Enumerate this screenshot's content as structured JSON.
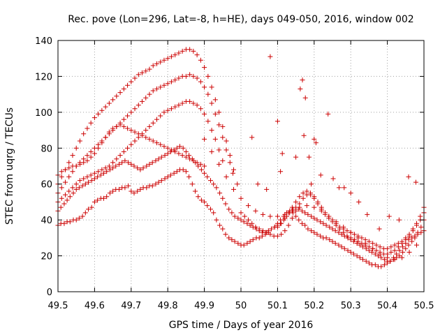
{
  "chart_data": {
    "type": "scatter",
    "title": "Rec. pove (Lon=296, Lat=-8, h=HE), days 049-050, 2016, window 002",
    "xlabel": "GPS time / Days of year 2016",
    "ylabel": "STEC from uqrg / TECUs",
    "xlim": [
      49.5,
      50.5
    ],
    "ylim": [
      0,
      140
    ],
    "xticks": [
      49.5,
      49.6,
      49.7,
      49.8,
      49.9,
      50,
      50.1,
      50.2,
      50.3,
      50.4,
      50.5
    ],
    "xtick_labels": [
      "49.5",
      "49.6",
      "49.7",
      "49.8",
      "49.9",
      "50",
      "50.1",
      "50.2",
      "50.3",
      "50.4",
      "50.5"
    ],
    "yticks": [
      0,
      20,
      40,
      60,
      80,
      100,
      120,
      140
    ],
    "ytick_labels": [
      "0",
      "20",
      "40",
      "60",
      "80",
      "100",
      "120",
      "140"
    ],
    "grid": true,
    "marker": "plus",
    "color": "#cc0000",
    "series": [
      {
        "x": [
          49.5,
          49.508,
          49.517,
          49.525,
          49.533,
          49.542,
          49.55,
          49.558,
          49.567,
          49.575,
          49.583,
          49.592,
          49.6,
          49.608,
          49.617,
          49.625,
          49.633,
          49.642,
          49.65,
          49.658,
          49.667,
          49.675,
          49.683,
          49.692,
          49.7,
          49.708,
          49.717,
          49.725,
          49.733,
          49.742,
          49.75,
          49.758,
          49.767,
          49.775,
          49.783,
          49.792,
          49.8,
          49.808,
          49.817,
          49.825,
          49.833,
          49.842,
          49.85,
          49.858,
          49.867,
          49.875,
          49.883,
          49.892,
          49.9,
          49.908,
          49.917,
          49.925,
          49.933,
          49.942,
          49.95,
          49.958,
          49.967,
          49.975,
          49.983,
          49.992,
          50.0,
          50.008,
          50.017,
          50.025,
          50.033,
          50.042,
          50.05,
          50.058,
          50.067,
          50.075,
          50.083,
          50.092,
          50.1,
          50.108,
          50.117,
          50.125,
          50.133,
          50.142,
          50.15,
          50.158,
          50.167,
          50.175,
          50.183,
          50.192,
          50.2,
          50.208,
          50.217,
          50.225,
          50.233,
          50.242,
          50.25,
          50.258,
          50.267,
          50.275,
          50.283,
          50.292,
          50.3,
          50.308,
          50.317,
          50.325,
          50.333,
          50.342,
          50.35,
          50.358,
          50.367,
          50.375,
          50.383,
          50.392,
          50.4,
          50.408,
          50.417,
          50.425,
          50.433,
          50.442,
          50.45,
          50.458,
          50.467,
          50.475,
          50.483,
          50.492,
          50.5
        ],
        "y": [
          37,
          38,
          38,
          39,
          39,
          40,
          40,
          41,
          42,
          44,
          46,
          47,
          50,
          51,
          52,
          52,
          53,
          55,
          56,
          57,
          57,
          58,
          58,
          59,
          56,
          55,
          56,
          57,
          58,
          58,
          59,
          59,
          60,
          61,
          62,
          63,
          64,
          65,
          66,
          67,
          68,
          68,
          67,
          64,
          60,
          56,
          53,
          51,
          50,
          48,
          46,
          44,
          40,
          37,
          35,
          32,
          30,
          29,
          28,
          27,
          26,
          26,
          27,
          28,
          29,
          30,
          30,
          31,
          32,
          33,
          35,
          36,
          38,
          40,
          42,
          44,
          45,
          44,
          42,
          40,
          38,
          37,
          35,
          34,
          33,
          32,
          31,
          30,
          30,
          29,
          28,
          27,
          26,
          25,
          24,
          23,
          22,
          21,
          20,
          19,
          18,
          17,
          16,
          15,
          15,
          14,
          14,
          15,
          16,
          17,
          19,
          21,
          23,
          25,
          27,
          29,
          30,
          31,
          32,
          33,
          34
        ]
      },
      {
        "x": [
          49.5,
          49.508,
          49.517,
          49.525,
          49.533,
          49.542,
          49.55,
          49.558,
          49.567,
          49.575,
          49.583,
          49.592,
          49.6,
          49.608,
          49.617,
          49.625,
          49.633,
          49.642,
          49.65,
          49.658,
          49.667,
          49.675,
          49.683,
          49.692,
          49.7,
          49.708,
          49.717,
          49.725,
          49.733,
          49.742,
          49.75,
          49.758,
          49.767,
          49.775,
          49.783,
          49.792,
          49.8,
          49.808,
          49.817,
          49.825,
          49.833,
          49.842,
          49.85,
          49.858,
          49.867,
          49.875,
          49.883,
          49.892,
          49.9,
          49.908,
          49.917,
          49.925,
          49.933,
          49.942,
          49.95,
          49.958,
          49.967,
          49.975,
          49.983,
          49.992,
          50.0,
          50.008,
          50.017,
          50.025,
          50.033,
          50.042,
          50.05,
          50.058,
          50.067,
          50.075,
          50.083,
          50.092,
          50.1,
          50.108,
          50.117,
          50.125,
          50.133,
          50.142,
          50.15,
          50.158,
          50.167,
          50.175,
          50.183,
          50.192,
          50.2,
          50.208,
          50.217,
          50.225,
          50.233,
          50.242,
          50.25,
          50.258,
          50.267,
          50.275,
          50.283,
          50.292,
          50.3,
          50.308,
          50.317,
          50.325,
          50.333,
          50.342,
          50.35,
          50.358,
          50.367,
          50.375,
          50.383,
          50.392,
          50.4,
          50.408,
          50.417,
          50.425,
          50.433,
          50.442,
          50.45,
          50.458,
          50.467,
          50.475,
          50.483,
          50.492,
          50.5
        ],
        "y": [
          45,
          47,
          49,
          51,
          53,
          55,
          57,
          58,
          59,
          60,
          61,
          62,
          63,
          64,
          65,
          66,
          67,
          68,
          69,
          70,
          71,
          72,
          73,
          72,
          71,
          70,
          69,
          68,
          69,
          70,
          71,
          72,
          73,
          74,
          75,
          76,
          77,
          78,
          79,
          80,
          81,
          80,
          78,
          76,
          74,
          72,
          70,
          68,
          66,
          64,
          62,
          60,
          58,
          55,
          52,
          49,
          46,
          44,
          42,
          41,
          40,
          39,
          38,
          37,
          36,
          35,
          34,
          33,
          33,
          34,
          35,
          36,
          37,
          38,
          40,
          42,
          44,
          46,
          47,
          46,
          45,
          44,
          43,
          42,
          41,
          40,
          39,
          38,
          37,
          36,
          35,
          34,
          33,
          32,
          31,
          30,
          29,
          28,
          27,
          26,
          25,
          24,
          23,
          22,
          21,
          20,
          19,
          18,
          17,
          17,
          18,
          19,
          20,
          22,
          24,
          26,
          28,
          30,
          33,
          36,
          40
        ]
      },
      {
        "x": [
          49.5,
          49.51,
          49.52,
          49.53,
          49.54,
          49.55,
          49.56,
          49.57,
          49.58,
          49.59,
          49.6,
          49.61,
          49.62,
          49.63,
          49.64,
          49.65,
          49.66,
          49.67,
          49.68,
          49.69,
          49.7,
          49.71,
          49.72,
          49.73,
          49.74,
          49.75,
          49.76,
          49.77,
          49.78,
          49.79,
          49.8,
          49.81,
          49.82,
          49.83,
          49.84,
          49.85,
          49.86,
          49.87,
          49.88,
          49.89,
          49.9,
          49.91,
          49.92,
          49.93,
          49.94,
          49.95,
          49.96,
          49.97,
          49.98
        ],
        "y": [
          60,
          64,
          68,
          72,
          76,
          80,
          84,
          88,
          91,
          94,
          97,
          99,
          101,
          103,
          105,
          107,
          109,
          111,
          113,
          115,
          117,
          119,
          121,
          122,
          123,
          124,
          126,
          127,
          128,
          129,
          130,
          131,
          132,
          133,
          134,
          135,
          135,
          134,
          132,
          129,
          125,
          120,
          114,
          107,
          100,
          92,
          84,
          76,
          68
        ]
      },
      {
        "x": [
          49.5,
          49.51,
          49.52,
          49.53,
          49.54,
          49.55,
          49.56,
          49.57,
          49.58,
          49.59,
          49.6,
          49.61,
          49.62,
          49.63,
          49.64,
          49.65,
          49.66,
          49.67,
          49.68,
          49.69,
          49.7,
          49.71,
          49.72,
          49.73,
          49.74,
          49.75,
          49.76,
          49.77,
          49.78,
          49.79,
          49.8,
          49.81,
          49.82,
          49.83,
          49.84,
          49.85,
          49.86,
          49.87,
          49.88,
          49.89,
          49.9,
          49.91,
          49.92,
          49.93,
          49.94,
          49.95,
          49.96,
          49.97
        ],
        "y": [
          55,
          58,
          61,
          64,
          67,
          70,
          72,
          74,
          76,
          78,
          80,
          82,
          84,
          86,
          88,
          90,
          92,
          94,
          96,
          98,
          100,
          102,
          104,
          106,
          108,
          110,
          112,
          113,
          114,
          115,
          116,
          117,
          118,
          119,
          120,
          120,
          121,
          120,
          119,
          117,
          114,
          110,
          105,
          99,
          93,
          86,
          79,
          72
        ]
      },
      {
        "x": [
          49.5,
          49.51,
          49.52,
          49.53,
          49.54,
          49.55,
          49.56,
          49.57,
          49.58,
          49.59,
          49.6,
          49.61,
          49.62,
          49.63,
          49.64,
          49.65,
          49.66,
          49.67,
          49.68,
          49.69,
          49.7,
          49.71,
          49.72,
          49.73,
          49.74,
          49.75,
          49.76,
          49.77,
          49.78,
          49.79,
          49.8,
          49.81,
          49.82,
          49.83,
          49.84,
          49.85,
          49.86,
          49.87,
          49.88,
          49.89,
          49.9,
          49.91,
          49.92,
          49.93,
          49.94,
          49.95
        ],
        "y": [
          50,
          52,
          54,
          56,
          58,
          60,
          62,
          63,
          64,
          65,
          66,
          67,
          68,
          69,
          70,
          72,
          74,
          76,
          78,
          80,
          82,
          84,
          86,
          88,
          90,
          92,
          94,
          96,
          98,
          100,
          101,
          102,
          103,
          104,
          105,
          106,
          106,
          105,
          104,
          102,
          99,
          95,
          90,
          85,
          79,
          73
        ]
      },
      {
        "x": [
          49.5,
          49.51,
          49.52,
          49.53,
          49.54,
          49.55,
          49.56,
          49.57,
          49.58,
          49.59,
          49.6,
          49.61,
          49.62,
          49.63,
          49.64,
          49.65,
          49.66,
          49.67,
          49.68,
          49.69,
          49.7,
          49.71,
          49.72,
          49.73,
          49.74,
          49.75,
          49.76,
          49.77,
          49.78,
          49.79,
          49.8,
          49.81,
          49.82,
          49.83,
          49.84,
          49.85,
          49.86,
          49.87,
          49.88,
          49.89,
          49.9
        ],
        "y": [
          65,
          67,
          68,
          69,
          70,
          70,
          71,
          72,
          73,
          75,
          77,
          80,
          83,
          86,
          89,
          91,
          92,
          93,
          92,
          91,
          90,
          89,
          88,
          87,
          86,
          85,
          84,
          83,
          82,
          81,
          80,
          79,
          78,
          77,
          76,
          75,
          74,
          73,
          72,
          71,
          70
        ]
      },
      {
        "x": [
          50.0,
          50.01,
          50.02,
          50.03,
          50.04,
          50.05,
          50.06,
          50.07,
          50.08,
          50.09,
          50.1,
          50.11,
          50.12,
          50.13,
          50.14,
          50.15,
          50.16,
          50.17,
          50.18,
          50.19,
          50.2,
          50.21,
          50.22,
          50.23,
          50.24,
          50.25,
          50.26,
          50.27,
          50.28,
          50.29,
          50.3,
          50.31,
          50.32,
          50.33,
          50.34,
          50.35,
          50.36,
          50.37,
          50.38,
          50.39,
          50.4,
          50.41,
          50.42,
          50.43,
          50.44,
          50.45,
          50.46,
          50.47,
          50.48,
          50.49,
          50.5
        ],
        "y": [
          44,
          42,
          40,
          38,
          36,
          35,
          34,
          33,
          32,
          31,
          31,
          32,
          34,
          37,
          41,
          45,
          49,
          52,
          54,
          54,
          52,
          49,
          46,
          43,
          41,
          39,
          37,
          35,
          33,
          31,
          30,
          29,
          28,
          27,
          26,
          25,
          24,
          23,
          22,
          21,
          21,
          22,
          23,
          25,
          27,
          29,
          31,
          34,
          37,
          40,
          44
        ]
      },
      {
        "x": [
          50.1,
          50.11,
          50.12,
          50.13,
          50.14,
          50.15,
          50.16,
          50.17,
          50.18,
          50.19,
          50.2,
          50.21,
          50.22,
          50.23,
          50.24,
          50.25,
          50.26,
          50.27,
          50.28,
          50.29,
          50.3,
          50.31,
          50.32,
          50.33,
          50.34,
          50.35,
          50.36,
          50.37,
          50.38,
          50.39,
          50.4,
          50.41,
          50.42,
          50.43,
          50.44,
          50.45,
          50.46,
          50.47,
          50.48,
          50.49,
          50.5
        ],
        "y": [
          36,
          38,
          41,
          44,
          47,
          50,
          53,
          55,
          56,
          55,
          53,
          50,
          47,
          44,
          42,
          40,
          38,
          36,
          35,
          34,
          33,
          32,
          31,
          30,
          29,
          28,
          27,
          26,
          25,
          24,
          24,
          25,
          26,
          27,
          28,
          30,
          32,
          35,
          38,
          42,
          47
        ]
      },
      {
        "x": [
          49.9,
          49.92,
          49.94,
          49.96,
          49.98,
          50.0,
          50.02,
          50.04,
          50.06,
          50.08,
          50.1,
          50.12,
          50.14,
          50.16,
          50.18,
          50.2,
          50.22,
          50.24,
          50.26,
          50.28,
          50.3,
          50.32,
          50.34,
          50.36,
          50.38,
          50.4,
          50.42,
          50.44,
          50.46,
          50.48
        ],
        "y": [
          85,
          78,
          71,
          64,
          57,
          52,
          48,
          45,
          43,
          42,
          42,
          43,
          45,
          47,
          48,
          47,
          45,
          42,
          39,
          36,
          33,
          30,
          27,
          24,
          21,
          19,
          18,
          19,
          22,
          26
        ]
      },
      {
        "x": [
          49.978,
          49.99,
          50.03,
          50.046,
          50.07,
          50.1,
          50.108,
          50.113,
          50.15,
          50.162,
          50.168,
          50.172,
          50.176,
          50.186,
          50.192,
          50.2,
          50.205,
          50.218,
          50.238,
          50.252,
          50.268,
          50.282,
          50.3,
          50.322,
          50.345,
          50.378,
          50.405,
          50.432,
          50.458,
          50.478
        ],
        "y": [
          66,
          60,
          86,
          60,
          57,
          95,
          67,
          77,
          75,
          113,
          118,
          87,
          108,
          75,
          60,
          85,
          83,
          65,
          99,
          63,
          58,
          58,
          55,
          50,
          43,
          35,
          42,
          40,
          64,
          61
        ]
      },
      {
        "x": [
          50.08
        ],
        "y": [
          131
        ]
      }
    ]
  }
}
